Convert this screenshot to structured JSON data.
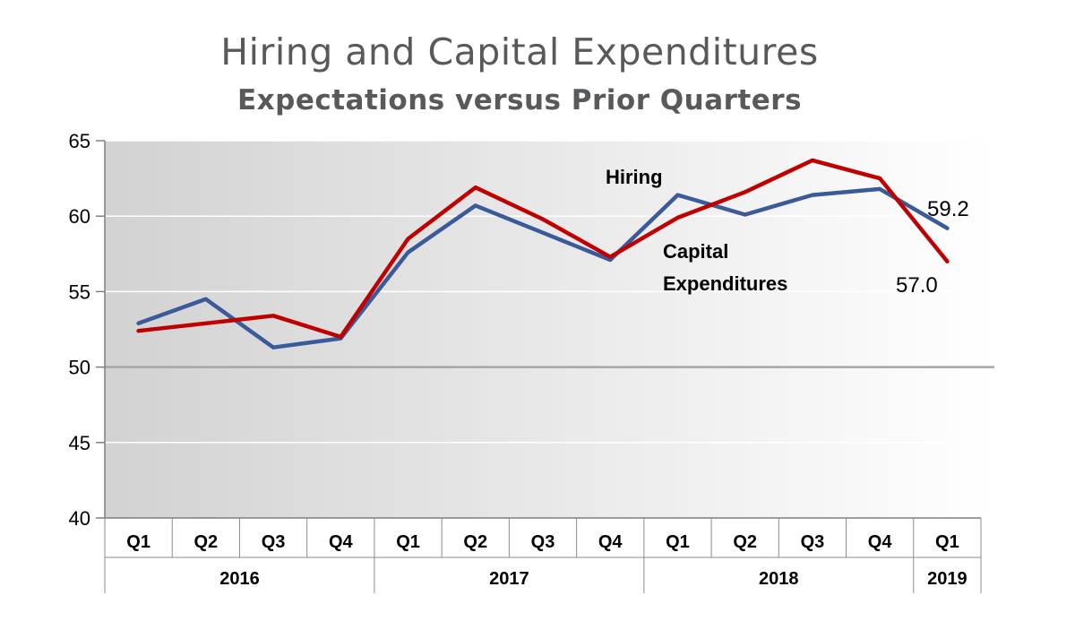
{
  "chart_data": {
    "type": "line",
    "title": "Hiring and Capital Expenditures",
    "subtitle": "Expectations versus Prior Quarters",
    "categories": [
      "Q1",
      "Q2",
      "Q3",
      "Q4",
      "Q1",
      "Q2",
      "Q3",
      "Q4",
      "Q1",
      "Q2",
      "Q3",
      "Q4",
      "Q1"
    ],
    "year_groups": [
      {
        "label": "2016",
        "count": 4
      },
      {
        "label": "2017",
        "count": 4
      },
      {
        "label": "2018",
        "count": 4
      },
      {
        "label": "2019",
        "count": 1
      }
    ],
    "ylim": [
      40,
      65
    ],
    "yticks": [
      40,
      45,
      50,
      55,
      60,
      65
    ],
    "reference_line": 50,
    "series": [
      {
        "name": "Hiring",
        "color": "#3a5a9a",
        "values": [
          52.9,
          54.5,
          51.3,
          51.9,
          57.6,
          60.7,
          58.9,
          57.1,
          61.4,
          60.1,
          61.4,
          61.8,
          59.2
        ]
      },
      {
        "name": "Capital Expenditures",
        "color": "#c00000",
        "values": [
          52.4,
          52.9,
          53.4,
          52.0,
          58.5,
          61.9,
          59.8,
          57.3,
          59.9,
          61.6,
          63.7,
          62.5,
          57.0
        ]
      }
    ],
    "series_labels": {
      "hiring": "Hiring",
      "capex_line1": "Capital",
      "capex_line2": "Expenditures"
    },
    "value_labels": {
      "hiring_last": "59.2",
      "capex_last": "57.0"
    },
    "background": "gradient grey to white",
    "grid": true
  }
}
